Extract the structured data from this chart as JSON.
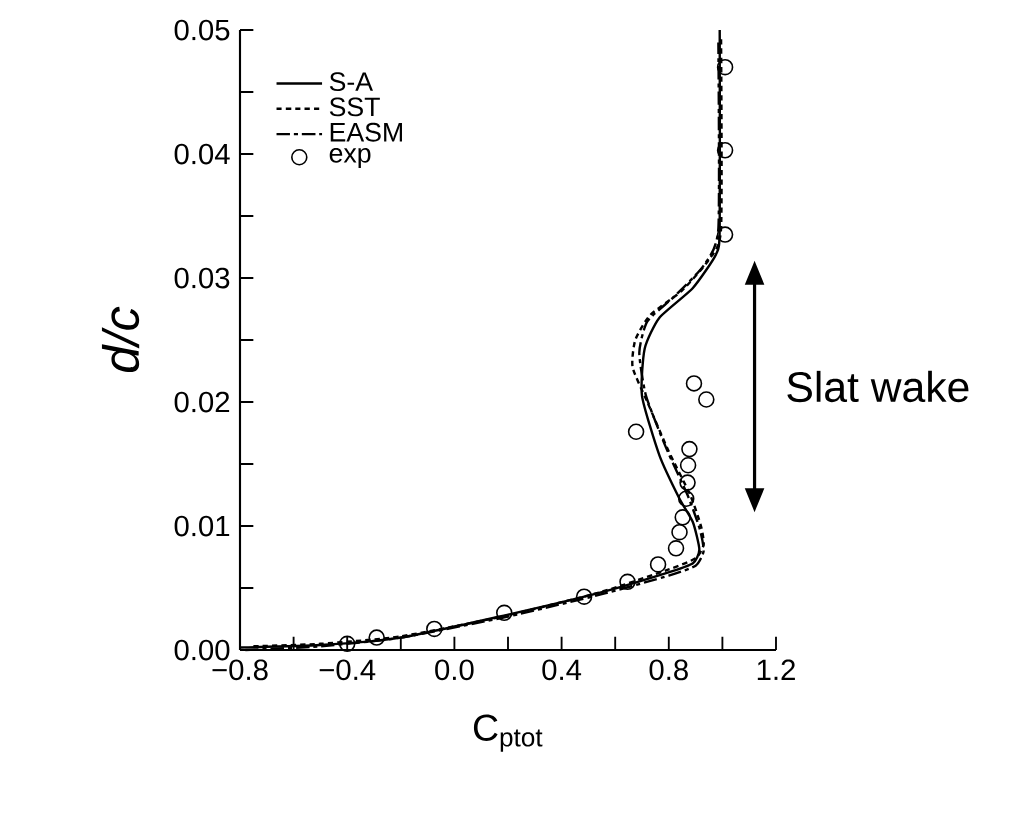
{
  "chart_data": {
    "type": "line",
    "xlabel": "C$_{ptot}$",
    "ylabel": "d/c",
    "xlim": [
      -0.8,
      1.2
    ],
    "ylim": [
      0,
      0.05
    ],
    "xticks": [
      {
        "value": -0.8,
        "label": "−0.8"
      },
      {
        "value": -0.6,
        "label": null
      },
      {
        "value": -0.4,
        "label": "−0.4"
      },
      {
        "value": -0.2,
        "label": null
      },
      {
        "value": 0,
        "label": "0.0"
      },
      {
        "value": 0.2,
        "label": null
      },
      {
        "value": 0.4,
        "label": "0.4"
      },
      {
        "value": 0.6,
        "label": null
      },
      {
        "value": 0.8,
        "label": "0.8"
      },
      {
        "value": 1.0,
        "label": null
      },
      {
        "value": 1.2,
        "label": "1.2"
      }
    ],
    "yticks": [
      {
        "value": 0,
        "label": "0.00"
      },
      {
        "value": 0.005,
        "label": null
      },
      {
        "value": 0.01,
        "label": "0.01"
      },
      {
        "value": 0.015,
        "label": null
      },
      {
        "value": 0.02,
        "label": "0.02"
      },
      {
        "value": 0.025,
        "label": null
      },
      {
        "value": 0.03,
        "label": "0.03"
      },
      {
        "value": 0.035,
        "label": null
      },
      {
        "value": 0.04,
        "label": "0.04"
      },
      {
        "value": 0.045,
        "label": null
      },
      {
        "value": 0.05,
        "label": "0.05"
      }
    ],
    "legend": "top left",
    "annotations": [
      "Slat wake"
    ],
    "series": [
      {
        "name": "S-A",
        "type": "line",
        "color": "#000000",
        "line_style": "solid",
        "marker": "none",
        "x": [
          -0.8,
          -0.5,
          -0.2,
          0.17,
          0.54,
          0.79,
          0.89,
          0.914,
          0.89,
          0.84,
          0.765,
          0.7,
          0.71,
          0.765,
          0.89,
          0.976,
          0.99,
          0.99
        ],
        "values": [
          0.0002,
          0.0004,
          0.001,
          0.0027,
          0.0046,
          0.0062,
          0.007,
          0.0081,
          0.0103,
          0.0122,
          0.0157,
          0.0205,
          0.0243,
          0.0268,
          0.0292,
          0.0319,
          0.034,
          0.05
        ]
      },
      {
        "name": "SST",
        "type": "line",
        "color": "#000000",
        "line_style": "dotted",
        "marker": "none",
        "x": [
          -0.75,
          -0.5,
          -0.2,
          0.2,
          0.55,
          0.8,
          0.9,
          0.93,
          0.92,
          0.88,
          0.8,
          0.72,
          0.665,
          0.675,
          0.73,
          0.85,
          0.95,
          0.995,
          0.995
        ],
        "values": [
          0.0003,
          0.0005,
          0.0011,
          0.0028,
          0.0047,
          0.0065,
          0.0074,
          0.0085,
          0.01,
          0.0125,
          0.016,
          0.02,
          0.0228,
          0.025,
          0.027,
          0.029,
          0.0315,
          0.034,
          0.0495
        ]
      },
      {
        "name": "EASM",
        "type": "line",
        "color": "#000000",
        "line_style": "dashdot",
        "marker": "none",
        "x": [
          -0.78,
          -0.5,
          -0.2,
          0.2,
          0.55,
          0.8,
          0.9,
          0.93,
          0.915,
          0.87,
          0.79,
          0.715,
          0.69,
          0.72,
          0.82,
          0.93,
          0.985,
          0.985
        ],
        "values": [
          0,
          0.0003,
          0.001,
          0.0027,
          0.0045,
          0.006,
          0.0068,
          0.008,
          0.0098,
          0.0125,
          0.0163,
          0.0205,
          0.024,
          0.0265,
          0.0285,
          0.031,
          0.034,
          0.049
        ]
      },
      {
        "name": "exp",
        "type": "scatter",
        "color": "#000000",
        "marker": "circle",
        "x": [
          -0.4,
          -0.29,
          -0.075,
          0.186,
          0.484,
          0.646,
          0.76,
          0.827,
          0.84,
          0.852,
          0.865,
          0.87,
          0.872,
          0.877,
          0.678,
          0.894,
          0.94,
          1.01,
          1.01,
          1.01
        ],
        "values": [
          0.0005,
          0.001,
          0.0017,
          0.003,
          0.0043,
          0.0055,
          0.0069,
          0.0082,
          0.0095,
          0.0107,
          0.0122,
          0.0135,
          0.0149,
          0.0162,
          0.0176,
          0.0215,
          0.0202,
          0.0335,
          0.0403,
          0.047
        ]
      }
    ]
  }
}
